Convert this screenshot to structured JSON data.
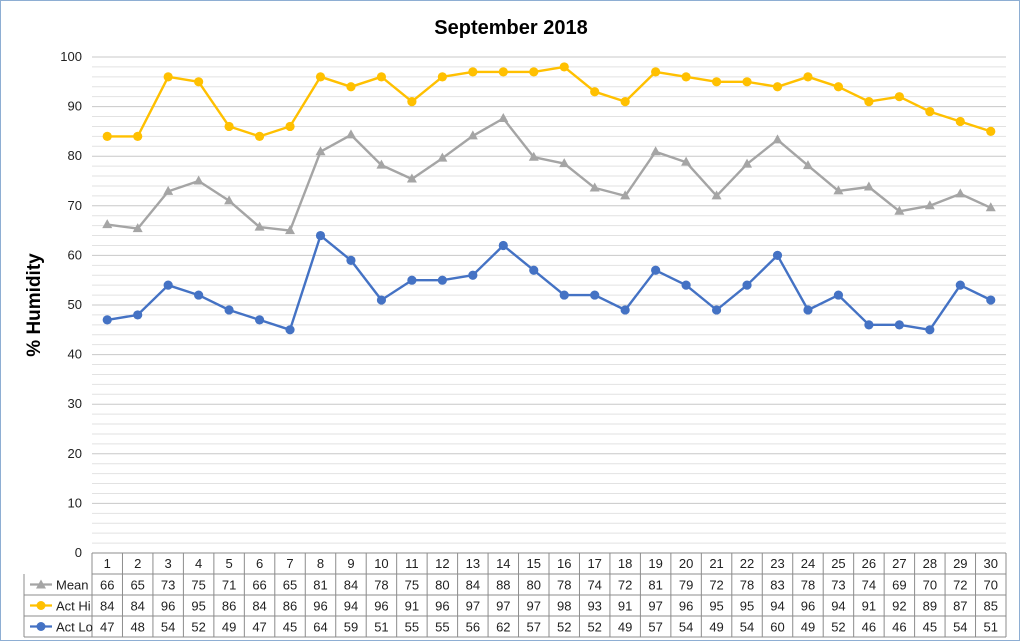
{
  "chart_data": {
    "type": "line",
    "title": "September 2018",
    "ylabel": "% Humidity",
    "xlabel": "",
    "ylim": [
      0,
      100
    ],
    "y_ticks": [
      0,
      10,
      20,
      30,
      40,
      50,
      60,
      70,
      80,
      90,
      100
    ],
    "minor_gridlines": true,
    "legend": "data-table",
    "categories": [
      "1",
      "2",
      "3",
      "4",
      "5",
      "6",
      "7",
      "8",
      "9",
      "10",
      "11",
      "12",
      "13",
      "14",
      "15",
      "16",
      "17",
      "18",
      "19",
      "20",
      "21",
      "22",
      "23",
      "24",
      "25",
      "26",
      "27",
      "28",
      "29",
      "30"
    ],
    "series": [
      {
        "name": "Mean",
        "color": "#a5a5a5",
        "marker": "triangle",
        "values": [
          66.2,
          65.4,
          72.9,
          75.0,
          71.0,
          65.7,
          65.0,
          80.9,
          84.3,
          78.2,
          75.4,
          79.6,
          84.1,
          87.6,
          79.8,
          78.5,
          73.6,
          72.0,
          80.9,
          78.8,
          72.0,
          78.4,
          83.3,
          78.1,
          73.0,
          73.8,
          68.9,
          70.0,
          72.4,
          69.6
        ],
        "labels": [
          "66",
          "65",
          "73",
          "75",
          "71",
          "66",
          "65",
          "81",
          "84",
          "78",
          "75",
          "80",
          "84",
          "88",
          "80",
          "78",
          "74",
          "72",
          "81",
          "79",
          "72",
          "78",
          "83",
          "78",
          "73",
          "74",
          "69",
          "70",
          "72",
          "70"
        ]
      },
      {
        "name": "Act Hi",
        "color": "#ffc000",
        "marker": "circle",
        "values": [
          84,
          84,
          96,
          95,
          86,
          84,
          86,
          96,
          94,
          96,
          91,
          96,
          97,
          97,
          97,
          98,
          93,
          91,
          97,
          96,
          95,
          95,
          94,
          96,
          94,
          91,
          92,
          89,
          87,
          85
        ],
        "labels": [
          "84",
          "84",
          "96",
          "95",
          "86",
          "84",
          "86",
          "96",
          "94",
          "96",
          "91",
          "96",
          "97",
          "97",
          "97",
          "98",
          "93",
          "91",
          "97",
          "96",
          "95",
          "95",
          "94",
          "96",
          "94",
          "91",
          "92",
          "89",
          "87",
          "85"
        ]
      },
      {
        "name": "Act Lo",
        "color": "#4472c4",
        "marker": "circle",
        "values": [
          47,
          48,
          54,
          52,
          49,
          47,
          45,
          64,
          59,
          51,
          55,
          55,
          56,
          62,
          57,
          52,
          52,
          49,
          57,
          54,
          49,
          54,
          60,
          49,
          52,
          46,
          46,
          45,
          54,
          51
        ],
        "labels": [
          "47",
          "48",
          "54",
          "52",
          "49",
          "47",
          "45",
          "64",
          "59",
          "51",
          "55",
          "55",
          "56",
          "62",
          "57",
          "52",
          "52",
          "49",
          "57",
          "54",
          "49",
          "54",
          "60",
          "49",
          "52",
          "46",
          "46",
          "45",
          "54",
          "51"
        ]
      }
    ]
  }
}
